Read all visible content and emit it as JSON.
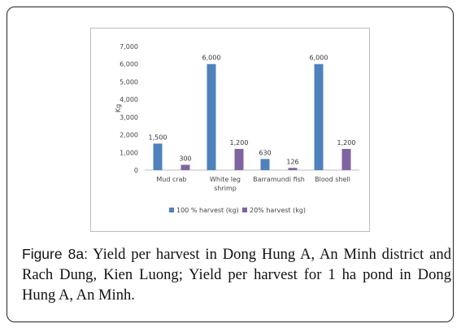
{
  "figure": {
    "label": "Figure 8a:",
    "caption": "Yield per harvest in Dong Hung A, An Minh district and Rach Dung, Kien Luong; Yield per harvest for 1 ha pond in Dong Hung A, An Minh."
  },
  "chart_data": {
    "type": "bar",
    "ylabel": "Kg",
    "ylim": [
      0,
      7000
    ],
    "yticks": [
      "0",
      "1,000",
      "2,000",
      "3,000",
      "4,000",
      "5,000",
      "6,000",
      "7,000"
    ],
    "categories": [
      [
        "Mud crab"
      ],
      [
        "White leg",
        "shrimp"
      ],
      [
        "Barramundi fish"
      ],
      [
        "Blood shell"
      ]
    ],
    "series": [
      {
        "name": "100 % harvest (kg)",
        "color": "#4f81bd",
        "values": [
          1500,
          6000,
          630,
          6000
        ],
        "labels": [
          "1,500",
          "6,000",
          "630",
          "6,000"
        ]
      },
      {
        "name": "20% harvest (kg)",
        "color": "#8064a2",
        "values": [
          300,
          1200,
          126,
          1200
        ],
        "labels": [
          "300",
          "1,200",
          "126",
          "1,200"
        ]
      }
    ],
    "legend": "bottom",
    "grid": false
  }
}
